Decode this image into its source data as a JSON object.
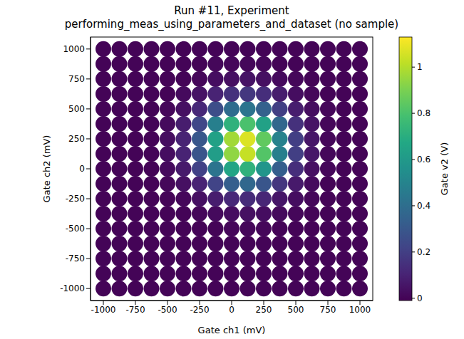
{
  "chart_data": {
    "type": "scatter",
    "title": "Run #11, Experiment performing_meas_using_parameters_and_dataset (no sample)",
    "x_label": "Gate ch1 (mV)",
    "y_label": "Gate ch2 (mV)",
    "xlim": [
      -1100,
      1100
    ],
    "ylim": [
      -1100,
      1100
    ],
    "xticks": [
      -1000,
      -750,
      -500,
      -250,
      0,
      250,
      500,
      750,
      1000
    ],
    "yticks": [
      -1000,
      -750,
      -500,
      -250,
      0,
      250,
      500,
      750,
      1000
    ],
    "grid": false,
    "x": [
      -1000,
      -875,
      -750,
      -625,
      -500,
      -375,
      -250,
      -125,
      0,
      125,
      250,
      375,
      500,
      625,
      750,
      875,
      1000
    ],
    "y": [
      -1000,
      -875,
      -750,
      -625,
      -500,
      -375,
      -250,
      -125,
      0,
      125,
      250,
      375,
      500,
      625,
      750,
      875,
      1000
    ],
    "values": [
      [
        0,
        0,
        0,
        0,
        0,
        0,
        0,
        0,
        0,
        0,
        0,
        0,
        0,
        0,
        0,
        0,
        0
      ],
      [
        0,
        0,
        0,
        0,
        0,
        0,
        0,
        0,
        0,
        0,
        0,
        0,
        0,
        0,
        0,
        0,
        0
      ],
      [
        0,
        0,
        0,
        0,
        0,
        0,
        0,
        0,
        0,
        0,
        0,
        0,
        0,
        0,
        0,
        0,
        0
      ],
      [
        0,
        0,
        0,
        0,
        0,
        0,
        0,
        0,
        0,
        0,
        0,
        0,
        0,
        0,
        0,
        0,
        0
      ],
      [
        0,
        0,
        0,
        0,
        0,
        0,
        0,
        0,
        0.01,
        0.01,
        0.01,
        0,
        0,
        0,
        0,
        0,
        0
      ],
      [
        0,
        0,
        0,
        0,
        0,
        0,
        0.01,
        0.02,
        0.03,
        0.04,
        0.03,
        0.02,
        0.01,
        0,
        0,
        0,
        0
      ],
      [
        0,
        0,
        0,
        0,
        0,
        0.01,
        0.04,
        0.08,
        0.12,
        0.13,
        0.11,
        0.06,
        0.03,
        0.01,
        0,
        0,
        0
      ],
      [
        0,
        0,
        0,
        0,
        0.01,
        0.04,
        0.1,
        0.22,
        0.33,
        0.37,
        0.29,
        0.17,
        0.07,
        0.02,
        0,
        0,
        0
      ],
      [
        0,
        0,
        0,
        0,
        0.02,
        0.07,
        0.21,
        0.43,
        0.66,
        0.72,
        0.58,
        0.33,
        0.14,
        0.04,
        0.01,
        0,
        0
      ],
      [
        0,
        0,
        0,
        0,
        0.03,
        0.1,
        0.29,
        0.62,
        0.94,
        1.03,
        0.82,
        0.48,
        0.2,
        0.06,
        0.01,
        0,
        0
      ],
      [
        0,
        0,
        0,
        0,
        0.03,
        0.1,
        0.3,
        0.64,
        0.97,
        1.07,
        0.85,
        0.49,
        0.2,
        0.06,
        0.01,
        0,
        0
      ],
      [
        0,
        0,
        0,
        0,
        0.02,
        0.08,
        0.23,
        0.48,
        0.72,
        0.8,
        0.64,
        0.37,
        0.15,
        0.05,
        0.01,
        0,
        0
      ],
      [
        0,
        0,
        0,
        0,
        0.01,
        0.04,
        0.12,
        0.26,
        0.39,
        0.43,
        0.34,
        0.2,
        0.08,
        0.03,
        0.01,
        0,
        0
      ],
      [
        0,
        0,
        0,
        0,
        0,
        0.02,
        0.05,
        0.1,
        0.15,
        0.17,
        0.14,
        0.08,
        0.03,
        0.01,
        0,
        0,
        0
      ],
      [
        0,
        0,
        0,
        0,
        0,
        0,
        0.01,
        0.03,
        0.04,
        0.05,
        0.04,
        0.02,
        0.01,
        0,
        0,
        0,
        0
      ],
      [
        0,
        0,
        0,
        0,
        0,
        0,
        0,
        0.01,
        0.01,
        0.01,
        0.01,
        0,
        0,
        0,
        0,
        0,
        0
      ],
      [
        0,
        0,
        0,
        0,
        0,
        0,
        0,
        0,
        0,
        0,
        0,
        0,
        0,
        0,
        0,
        0,
        0
      ]
    ],
    "color_label": "Gate v2 (V)",
    "color_range": [
      -0.01,
      1.13
    ],
    "color_ticks": [
      0,
      0.2,
      0.4,
      0.6,
      0.8,
      1
    ]
  }
}
